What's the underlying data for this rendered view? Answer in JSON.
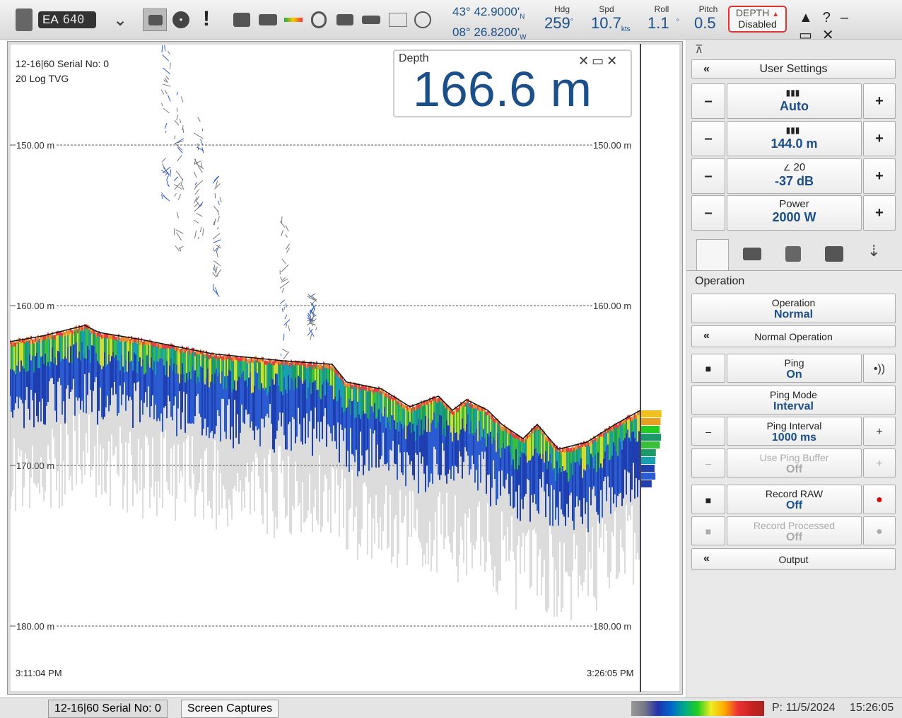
{
  "toolbar": {
    "logo": "EA",
    "model": "640",
    "position": {
      "latitude": "43° 42.9000'",
      "lat_hemisphere": "N",
      "longitude": "08° 26.8200'",
      "lon_hemisphere": "W"
    },
    "heading": {
      "label": "Hdg",
      "value": "259",
      "unit": "°"
    },
    "speed": {
      "label": "Spd",
      "value": "10.7",
      "unit": "kts"
    },
    "roll": {
      "label": "Roll",
      "value": "1.1",
      "unit": "°"
    },
    "pitch": {
      "label": "Pitch",
      "value": "0.5"
    },
    "depth_alarm": {
      "label": "DEPTH",
      "state": "Disabled"
    }
  },
  "echogram": {
    "channel": "12-16|60 Serial No: 0",
    "tvg": "20 Log TVG",
    "depth_readout": {
      "label": "Depth",
      "value": "166.6 m"
    },
    "range_lines": [
      "150.00 m",
      "160.00 m",
      "170.00 m",
      "180.00 m"
    ],
    "start_time": "3:11:04 PM",
    "end_time": "3:26:05 PM"
  },
  "panel": {
    "user_settings": "User Settings",
    "gain_mode": "Auto",
    "range": "144.0 m",
    "tvg_value": "20",
    "gain": "-37 dB",
    "power_label": "Power",
    "power": "2000 W",
    "section": "Operation",
    "buttons": [
      {
        "label": "Operation",
        "value": "Normal"
      },
      {
        "label": "Normal Operation"
      },
      {
        "label": "Ping",
        "value": "On"
      },
      {
        "label": "Ping Mode",
        "value": "Interval"
      },
      {
        "label": "Ping Interval",
        "value": "1000 ms"
      },
      {
        "label": "Use Ping Buffer",
        "value": "Off"
      },
      {
        "label": "Record RAW",
        "value": "Off"
      },
      {
        "label": "Record Processed",
        "value": "Off"
      },
      {
        "label": "Output"
      }
    ]
  },
  "status_bar": {
    "tabs": [
      "12-16|60 Serial No: 0",
      "Screen Captures"
    ],
    "date": "P: 11/5/2024",
    "time": "15:26:05"
  }
}
